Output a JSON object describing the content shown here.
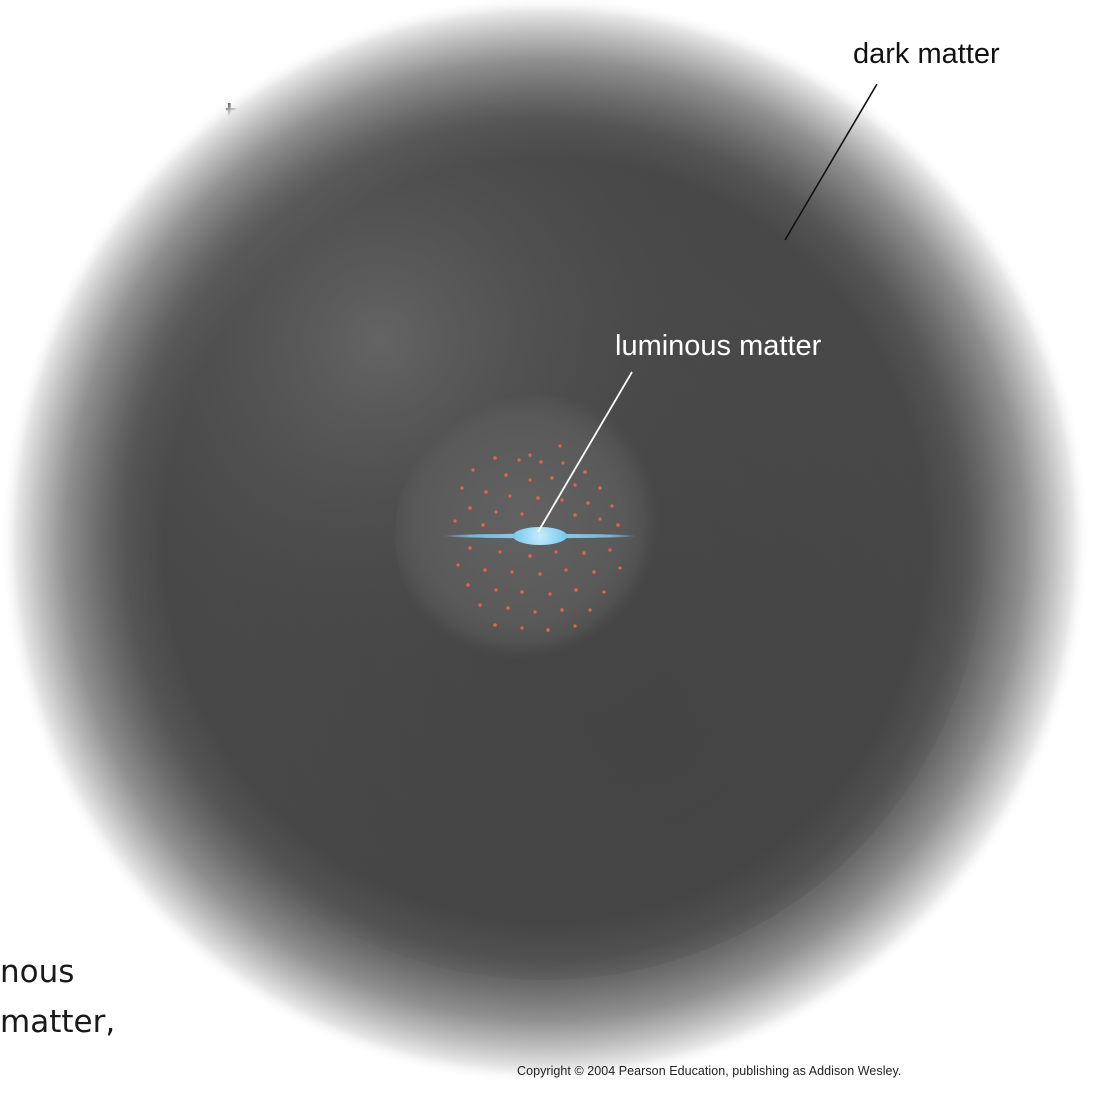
{
  "slide_fragments": {
    "line_1": "t",
    "line_2": "”.",
    "line_3": "nous",
    "line_4": "matter,"
  },
  "diagram": {
    "labels": {
      "dark_matter": "dark matter",
      "luminous_matter": "luminous matter"
    },
    "copyright": "Copyright © 2004 Pearson Education, publishing as Addison Wesley."
  },
  "colors": {
    "dark_matter_halo": "#4a4a4a",
    "halo_highlight": "#6e6e6e",
    "luminous_sphere": "#5c5c5c",
    "galactic_disk": "#7ecbef",
    "galactic_bulge": "#a5e0f7",
    "halo_stars": "#e0674c",
    "leader_line_outer": "#111111",
    "leader_line_inner": "#ffffff"
  }
}
